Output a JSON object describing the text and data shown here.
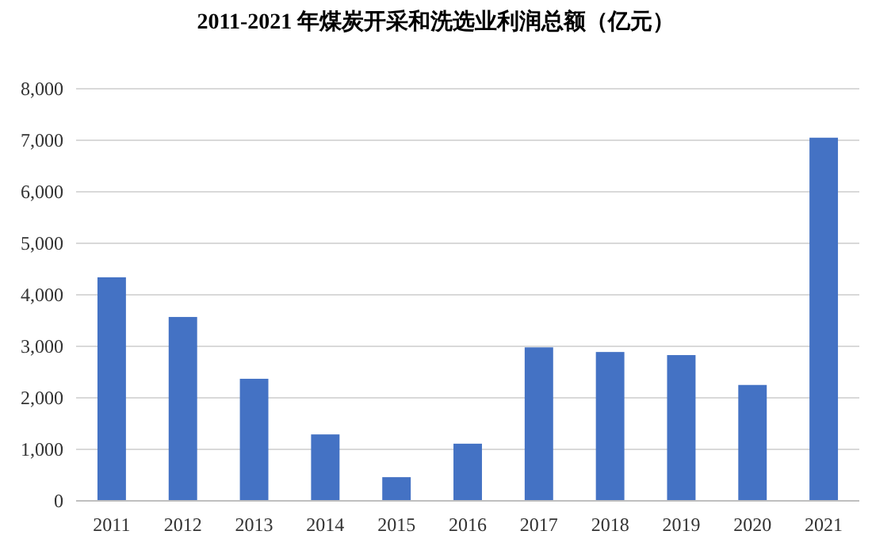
{
  "chart_data": {
    "type": "bar",
    "title": "2011-2021 年煤炭开采和洗选业利润总额（亿元）",
    "categories": [
      "2011",
      "2012",
      "2013",
      "2014",
      "2015",
      "2016",
      "2017",
      "2018",
      "2019",
      "2020",
      "2021"
    ],
    "values": [
      4340,
      3570,
      2370,
      1290,
      460,
      1110,
      2980,
      2890,
      2830,
      2250,
      7050
    ],
    "color": "#4472c4",
    "ylim": [
      0,
      8000
    ],
    "yticks": [
      0,
      {
        "value": 1000,
        "label": "1,000"
      },
      {
        "value": 2000,
        "label": "2,000"
      },
      {
        "value": 3000,
        "label": "3,000"
      },
      {
        "value": 4000,
        "label": "4,000"
      },
      {
        "value": 5000,
        "label": "5,000"
      },
      {
        "value": 6000,
        "label": "6,000"
      },
      {
        "value": 7000,
        "label": "7,000"
      },
      {
        "value": 8000,
        "label": "8,000"
      }
    ],
    "grid": "y"
  }
}
